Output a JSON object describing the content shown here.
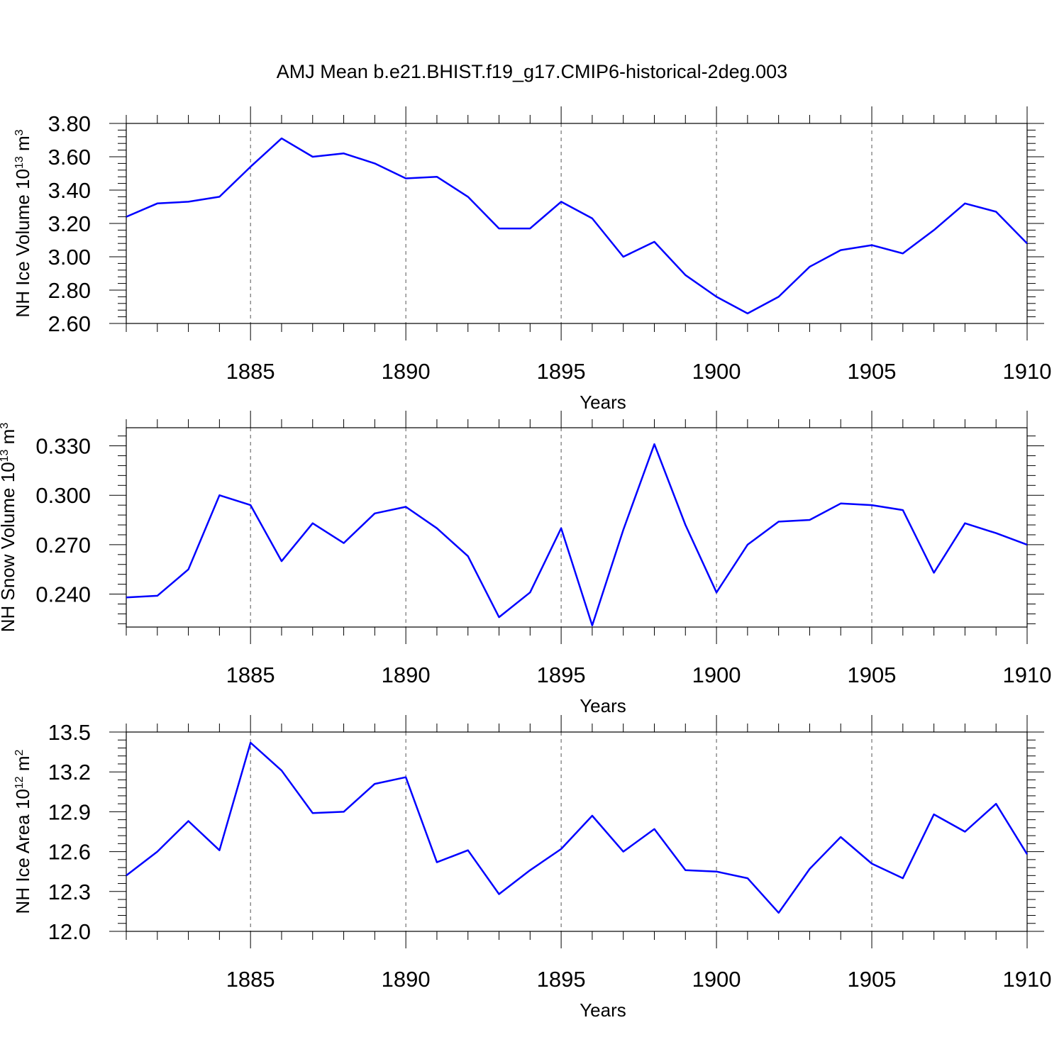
{
  "figure": {
    "title": "AMJ Mean b.e21.BHIST.f19_g17.CMIP6-historical-2deg.003",
    "line_color": "#0000ff",
    "grid_style": "dashed vertical gridlines at major x ticks"
  },
  "chart_data": [
    {
      "type": "line",
      "ylabel": {
        "text": "NH Ice Volume 10",
        "exp": "13",
        "unit": " m",
        "unit_exp": "3"
      },
      "xlabel": "Years",
      "xlim": [
        1881,
        1910
      ],
      "ylim": [
        2.6,
        3.8
      ],
      "x_ticks": [
        1885,
        1890,
        1895,
        1900,
        1905,
        1910
      ],
      "y_ticks": [
        "2.60",
        "2.80",
        "3.00",
        "3.20",
        "3.40",
        "3.60",
        "3.80"
      ],
      "grid": "x-major-dashed",
      "x": [
        1881,
        1882,
        1883,
        1884,
        1885,
        1886,
        1887,
        1888,
        1889,
        1890,
        1891,
        1892,
        1893,
        1894,
        1895,
        1896,
        1897,
        1898,
        1899,
        1900,
        1901,
        1902,
        1903,
        1904,
        1905,
        1906,
        1907,
        1908,
        1909,
        1910
      ],
      "values": [
        3.24,
        3.32,
        3.33,
        3.36,
        3.54,
        3.71,
        3.6,
        3.62,
        3.56,
        3.47,
        3.48,
        3.36,
        3.17,
        3.17,
        3.33,
        3.23,
        3.0,
        3.09,
        2.89,
        2.76,
        2.66,
        2.76,
        2.94,
        3.04,
        3.07,
        3.02,
        3.16,
        3.32,
        3.27,
        3.08
      ]
    },
    {
      "type": "line",
      "ylabel": {
        "text": "NH Snow Volume 10",
        "exp": "13",
        "unit": " m",
        "unit_exp": "3"
      },
      "xlabel": "Years",
      "xlim": [
        1881,
        1910
      ],
      "ylim": [
        0.22,
        0.341
      ],
      "x_ticks": [
        1885,
        1890,
        1895,
        1900,
        1905,
        1910
      ],
      "y_ticks": [
        "0.240",
        "0.270",
        "0.300",
        "0.330"
      ],
      "grid": "x-major-dashed",
      "x": [
        1881,
        1882,
        1883,
        1884,
        1885,
        1886,
        1887,
        1888,
        1889,
        1890,
        1891,
        1892,
        1893,
        1894,
        1895,
        1896,
        1897,
        1898,
        1899,
        1900,
        1901,
        1902,
        1903,
        1904,
        1905,
        1906,
        1907,
        1908,
        1909,
        1910
      ],
      "values": [
        0.238,
        0.239,
        0.255,
        0.3,
        0.294,
        0.26,
        0.283,
        0.271,
        0.289,
        0.293,
        0.28,
        0.263,
        0.226,
        0.241,
        0.28,
        0.221,
        0.279,
        0.331,
        0.282,
        0.241,
        0.27,
        0.284,
        0.285,
        0.295,
        0.294,
        0.291,
        0.253,
        0.283,
        0.277,
        0.27
      ]
    },
    {
      "type": "line",
      "ylabel": {
        "text": "NH Ice Area 10",
        "exp": "12",
        "unit": " m",
        "unit_exp": "2"
      },
      "xlabel": "Years",
      "xlim": [
        1881,
        1910
      ],
      "ylim": [
        12.0,
        13.5
      ],
      "x_ticks": [
        1885,
        1890,
        1895,
        1900,
        1905,
        1910
      ],
      "y_ticks": [
        "12.0",
        "12.3",
        "12.6",
        "12.9",
        "13.2",
        "13.5"
      ],
      "grid": "x-major-dashed",
      "x": [
        1881,
        1882,
        1883,
        1884,
        1885,
        1886,
        1887,
        1888,
        1889,
        1890,
        1891,
        1892,
        1893,
        1894,
        1895,
        1896,
        1897,
        1898,
        1899,
        1900,
        1901,
        1902,
        1903,
        1904,
        1905,
        1906,
        1907,
        1908,
        1909,
        1910
      ],
      "values": [
        12.42,
        12.6,
        12.83,
        12.61,
        13.42,
        13.21,
        12.89,
        12.9,
        13.11,
        13.16,
        12.52,
        12.61,
        12.28,
        12.46,
        12.62,
        12.87,
        12.6,
        12.77,
        12.46,
        12.45,
        12.4,
        12.14,
        12.47,
        12.71,
        12.51,
        12.4,
        12.88,
        12.75,
        12.96,
        12.58
      ]
    }
  ]
}
